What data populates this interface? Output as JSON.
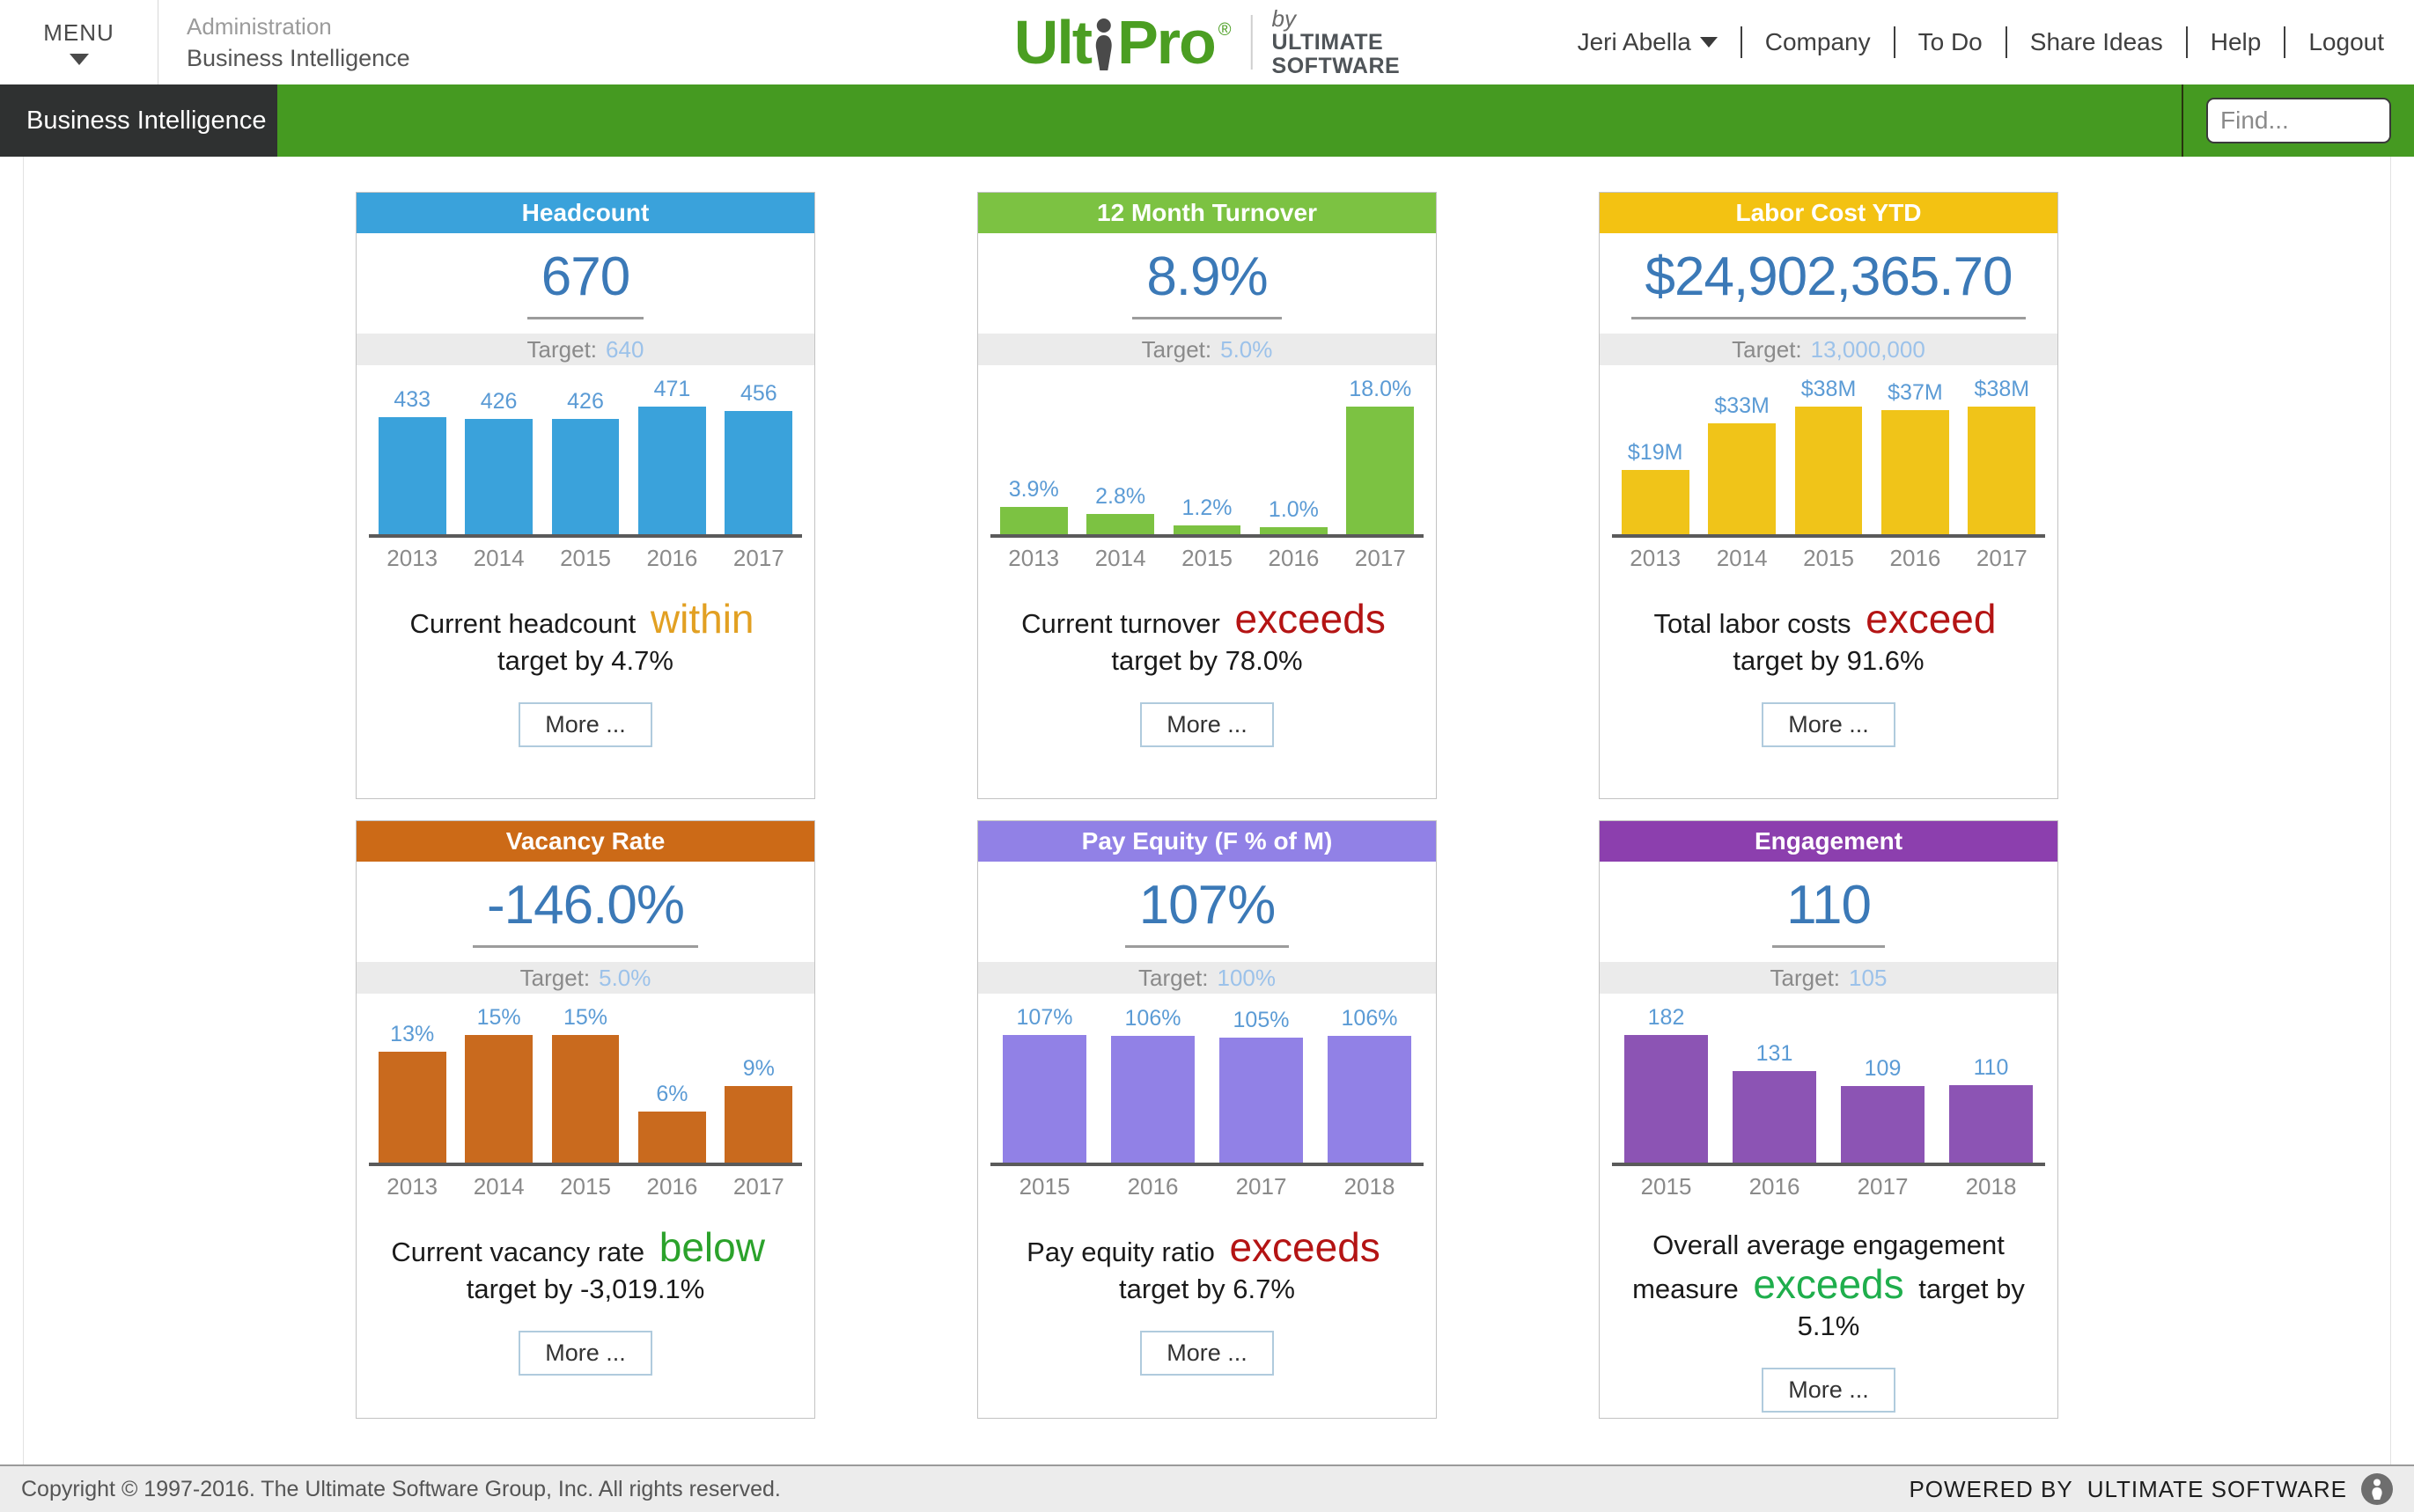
{
  "header": {
    "menu_label": "MENU",
    "breadcrumb": {
      "section": "Administration",
      "page": "Business Intelligence"
    },
    "logo": {
      "product": "UltiPro",
      "reg": "®",
      "by": "by",
      "company_line1": "ULTIMATE",
      "company_line2": "SOFTWARE"
    },
    "nav": {
      "user": "Jeri Abella",
      "company": "Company",
      "todo": "To Do",
      "share_ideas": "Share Ideas",
      "help": "Help",
      "logout": "Logout"
    }
  },
  "subnav": {
    "active_tab": "Business Intelligence",
    "find_placeholder": "Find..."
  },
  "colors": {
    "green_bar": "#459a21",
    "big_number_blue": "#3b79b7",
    "target_value_blue": "#9cc2ea",
    "bar_label_blue": "#5b9bd5"
  },
  "cards": [
    {
      "title": "Headcount",
      "header_color": "#3aa2db",
      "bar_color": "#3aa2db",
      "value": "670",
      "target_label": "Target:",
      "target": "640",
      "categories": [
        "2013",
        "2014",
        "2015",
        "2016",
        "2017"
      ],
      "values": [
        433,
        426,
        426,
        471,
        456
      ],
      "bar_labels": [
        "433",
        "426",
        "426",
        "471",
        "456"
      ],
      "desc_pre": "Current headcount ",
      "desc_em": "within",
      "emphasis_color": "#e2a022",
      "desc_post": " target by 4.7%",
      "more_label": "More ..."
    },
    {
      "title": "12 Month Turnover",
      "header_color": "#7cc242",
      "bar_color": "#7cc242",
      "value": "8.9%",
      "target_label": "Target:",
      "target": "5.0%",
      "categories": [
        "2013",
        "2014",
        "2015",
        "2016",
        "2017"
      ],
      "values": [
        3.9,
        2.8,
        1.2,
        1.0,
        18.0
      ],
      "bar_labels": [
        "3.9%",
        "2.8%",
        "1.2%",
        "1.0%",
        "18.0%"
      ],
      "desc_pre": "Current turnover ",
      "desc_em": "exceeds",
      "emphasis_color": "#b41414",
      "desc_post": " target by 78.0%",
      "more_label": "More ..."
    },
    {
      "title": "Labor Cost YTD",
      "header_color": "#f3c212",
      "bar_color": "#f0c419",
      "value": "$24,902,365.70",
      "target_label": "Target:",
      "target": "13,000,000",
      "categories": [
        "2013",
        "2014",
        "2015",
        "2016",
        "2017"
      ],
      "values": [
        19,
        33,
        38,
        37,
        38
      ],
      "bar_labels": [
        "$19M",
        "$33M",
        "$38M",
        "$37M",
        "$38M"
      ],
      "desc_pre": "Total labor costs ",
      "desc_em": "exceed",
      "emphasis_color": "#b41414",
      "desc_post": " target by 91.6%",
      "more_label": "More ..."
    },
    {
      "title": "Vacancy Rate",
      "header_color": "#cc6a17",
      "bar_color": "#c96a1e",
      "value": "-146.0%",
      "target_label": "Target:",
      "target": "5.0%",
      "categories": [
        "2013",
        "2014",
        "2015",
        "2016",
        "2017"
      ],
      "values": [
        13,
        15,
        15,
        6,
        9
      ],
      "bar_labels": [
        "13%",
        "15%",
        "15%",
        "6%",
        "9%"
      ],
      "desc_pre": "Current vacancy rate ",
      "desc_em": "below",
      "emphasis_color": "#2ba22b",
      "desc_post": "  target by -3,019.1%",
      "more_label": "More ..."
    },
    {
      "title": "Pay Equity (F % of M)",
      "header_color": "#9181e6",
      "bar_color": "#9181e6",
      "value": "107%",
      "target_label": "Target:",
      "target": "100%",
      "categories": [
        "2015",
        "2016",
        "2017",
        "2018"
      ],
      "values": [
        107,
        106,
        105,
        106
      ],
      "bar_labels": [
        "107%",
        "106%",
        "105%",
        "106%"
      ],
      "desc_pre": "Pay equity ratio ",
      "desc_em": "exceeds",
      "emphasis_color": "#b41414",
      "desc_post": " target by 6.7%",
      "more_label": "More ..."
    },
    {
      "title": "Engagement",
      "header_color": "#8c3fae",
      "bar_color": "#8c54b4",
      "value": "110",
      "target_label": "Target:",
      "target": "105",
      "categories": [
        "2015",
        "2016",
        "2017",
        "2018"
      ],
      "values": [
        182,
        131,
        109,
        110
      ],
      "bar_labels": [
        "182",
        "131",
        "109",
        "110"
      ],
      "desc_pre": "Overall average engagement measure ",
      "desc_em": "exceeds",
      "emphasis_color": "#1fae4c",
      "desc_post": " target by 5.1%",
      "more_label": "More ..."
    }
  ],
  "chart_data": [
    {
      "type": "bar",
      "title": "Headcount",
      "categories": [
        "2013",
        "2014",
        "2015",
        "2016",
        "2017"
      ],
      "values": [
        433,
        426,
        426,
        471,
        456
      ],
      "current_value": 670,
      "target": 640,
      "ylim": [
        0,
        471
      ],
      "grid": false,
      "bar_color": "#3aa2db"
    },
    {
      "type": "bar",
      "title": "12 Month Turnover",
      "categories": [
        "2013",
        "2014",
        "2015",
        "2016",
        "2017"
      ],
      "values": [
        3.9,
        2.8,
        1.2,
        1.0,
        18.0
      ],
      "units": "%",
      "current_value": 8.9,
      "target": 5.0,
      "ylim": [
        0,
        18
      ],
      "grid": false,
      "bar_color": "#7cc242"
    },
    {
      "type": "bar",
      "title": "Labor Cost YTD",
      "categories": [
        "2013",
        "2014",
        "2015",
        "2016",
        "2017"
      ],
      "values": [
        19,
        33,
        38,
        37,
        38
      ],
      "units": "$M",
      "current_value": 24902365.7,
      "target": 13000000,
      "ylim": [
        0,
        38
      ],
      "grid": false,
      "bar_color": "#f0c419"
    },
    {
      "type": "bar",
      "title": "Vacancy Rate",
      "categories": [
        "2013",
        "2014",
        "2015",
        "2016",
        "2017"
      ],
      "values": [
        13,
        15,
        15,
        6,
        9
      ],
      "units": "%",
      "current_value": -146.0,
      "target": 5.0,
      "ylim": [
        0,
        15
      ],
      "grid": false,
      "bar_color": "#c96a1e"
    },
    {
      "type": "bar",
      "title": "Pay Equity (F % of M)",
      "categories": [
        "2015",
        "2016",
        "2017",
        "2018"
      ],
      "values": [
        107,
        106,
        105,
        106
      ],
      "units": "%",
      "current_value": 107,
      "target": 100,
      "ylim": [
        0,
        107
      ],
      "grid": false,
      "bar_color": "#9181e6"
    },
    {
      "type": "bar",
      "title": "Engagement",
      "categories": [
        "2015",
        "2016",
        "2017",
        "2018"
      ],
      "values": [
        182,
        131,
        109,
        110
      ],
      "current_value": 110,
      "target": 105,
      "ylim": [
        0,
        182
      ],
      "grid": false,
      "bar_color": "#8c54b4"
    }
  ],
  "footer": {
    "copyright": "Copyright © 1997-2016. The Ultimate Software Group, Inc. All rights reserved.",
    "powered_by": "POWERED BY",
    "powered_company": "ULTIMATE SOFTWARE"
  }
}
